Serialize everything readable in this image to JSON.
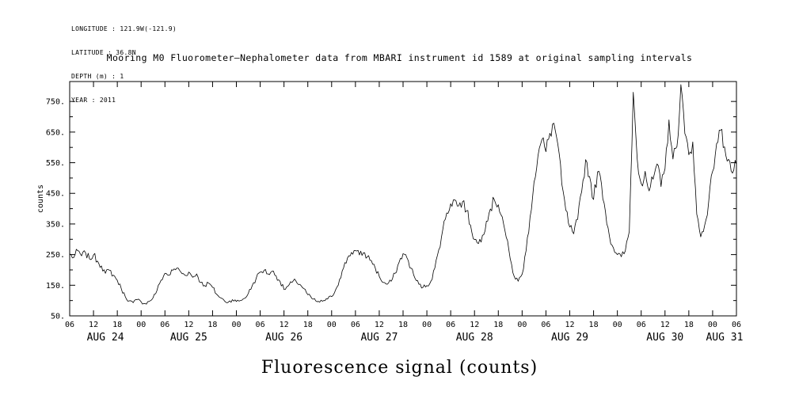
{
  "meta": {
    "lines": [
      "LONGITUDE : 121.9W(-121.9)",
      "LATITUDE : 36.8N",
      "DEPTH (m) : 1",
      "YEAR : 2011"
    ]
  },
  "title": "Mooring M0 Fluorometer–Nephalometer data from MBARI instrument id 1589 at original sampling intervals",
  "chart_data": {
    "type": "line",
    "title": "Mooring M0 Fluorometer–Nephalometer data from MBARI instrument id 1589 at original sampling intervals",
    "ylabel": "counts",
    "caption": "Fluorescence signal (counts)",
    "background_color": "#ffffff",
    "line_color": "#000000",
    "grid": false,
    "legend": false,
    "x_unit": "hours since 2011-08-24 00:00",
    "x_range": [
      6,
      174
    ],
    "y_range": [
      50,
      815
    ],
    "y_ticks_major": [
      50,
      150,
      250,
      350,
      450,
      550,
      650,
      750
    ],
    "y_tick_labels": [
      "50.",
      "150.",
      "250.",
      "350.",
      "450.",
      "550.",
      "650.",
      "750."
    ],
    "y_ticks_minor": [
      100,
      200,
      300,
      400,
      500,
      600,
      700
    ],
    "x_tick_step_hours": 6,
    "x_tick_labels_by_hour": {
      "0": "00",
      "6": "06",
      "12": "12",
      "18": "18"
    },
    "days": [
      "AUG 24",
      "AUG 25",
      "AUG 26",
      "AUG 27",
      "AUG 28",
      "AUG 29",
      "AUG 30",
      "AUG 31"
    ],
    "series": [
      {
        "name": "fluorescence_counts",
        "start_hour": 6,
        "step_hours": 1,
        "values": [
          252,
          240,
          263,
          246,
          256,
          236,
          249,
          229,
          213,
          189,
          199,
          183,
          166,
          139,
          113,
          99,
          93,
          103,
          96,
          90,
          97,
          109,
          133,
          166,
          189,
          183,
          199,
          206,
          193,
          183,
          193,
          176,
          187,
          159,
          149,
          157,
          143,
          121,
          109,
          99,
          95,
          103,
          97,
          100,
          107,
          123,
          149,
          173,
          193,
          199,
          187,
          196,
          181,
          163,
          136,
          147,
          159,
          164,
          153,
          139,
          119,
          107,
          99,
          95,
          100,
          105,
          113,
          135,
          169,
          206,
          239,
          257,
          263,
          249,
          256,
          243,
          231,
          206,
          179,
          159,
          153,
          163,
          189,
          225,
          253,
          239,
          206,
          173,
          153,
          143,
          149,
          163,
          206,
          266,
          331,
          386,
          416,
          429,
          409,
          423,
          393,
          346,
          299,
          286,
          313,
          359,
          399,
          429,
          413,
          373,
          306,
          236,
          179,
          163,
          186,
          263,
          373,
          487,
          573,
          626,
          586,
          646,
          679,
          610,
          480,
          395,
          340,
          318,
          365,
          455,
          560,
          505,
          430,
          520,
          480,
          390,
          310,
          272,
          250,
          243,
          262,
          325,
          780,
          562,
          482,
          522,
          458,
          496,
          546,
          472,
          530,
          690,
          562,
          602,
          805,
          645,
          576,
          618,
          382,
          308,
          346,
          422,
          522,
          612,
          656,
          602,
          561,
          516,
          545
        ]
      }
    ]
  }
}
